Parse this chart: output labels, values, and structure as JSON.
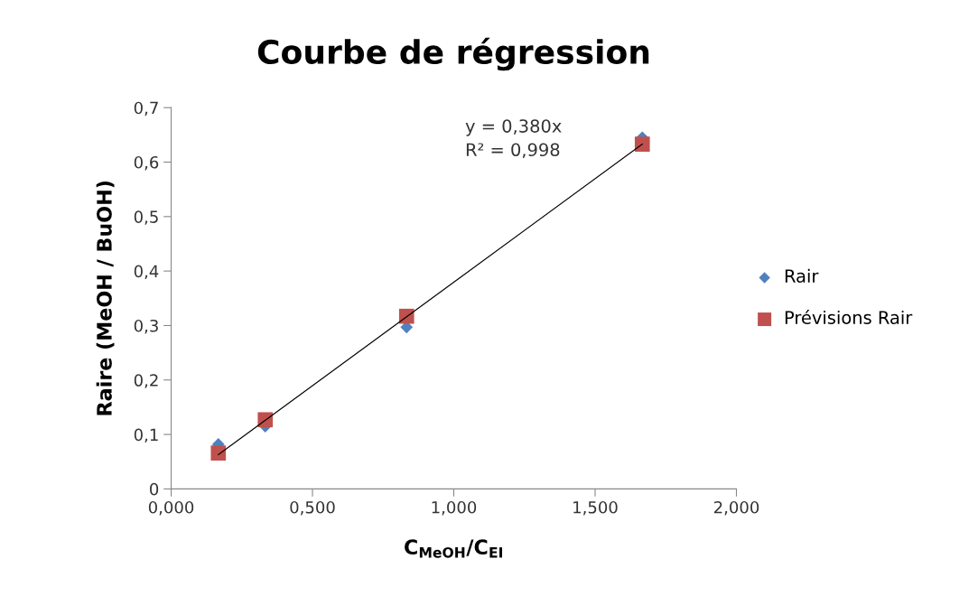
{
  "chart_data": {
    "type": "scatter",
    "title": "Courbe de régression",
    "xlabel": "C$_{MeOH}$/C$_{EI}$",
    "ylabel": "Raire (MeOH / BuOH)",
    "series": [
      {
        "name": "Rair",
        "marker": "diamond",
        "color": "#4f81bd",
        "x": [
          0.167,
          0.333,
          0.833,
          1.667
        ],
        "values": [
          0.082,
          0.115,
          0.297,
          0.645
        ]
      },
      {
        "name": "Prévisions Rair",
        "marker": "square",
        "color": "#c0504d",
        "x": [
          0.167,
          0.333,
          0.833,
          1.667
        ],
        "values": [
          0.066,
          0.127,
          0.317,
          0.633
        ]
      },
      {
        "type": "line",
        "marker": "none",
        "color": "#000000",
        "x": [
          0.167,
          1.667
        ],
        "values": [
          0.063,
          0.633
        ]
      }
    ],
    "annotations": [
      "y = 0,380x",
      "R² = 0,998"
    ],
    "xlim": [
      0,
      2
    ],
    "xticks": [
      {
        "value": 0,
        "label": "0,000"
      },
      {
        "value": 0.5,
        "label": "0,500"
      },
      {
        "value": 1,
        "label": "1,000"
      },
      {
        "value": 1.5,
        "label": "1,500"
      },
      {
        "value": 2,
        "label": "2,000"
      }
    ],
    "ylim": [
      0,
      0.7
    ],
    "yticks": [
      0,
      {
        "value": 0.1,
        "label": "0,1"
      },
      {
        "value": 0.2,
        "label": "0,2"
      },
      {
        "value": 0.3,
        "label": "0,3"
      },
      {
        "value": 0.4,
        "label": "0,4"
      },
      {
        "value": 0.5,
        "label": "0,5"
      },
      {
        "value": 0.6,
        "label": "0,6"
      },
      {
        "value": 0.7,
        "label": "0,7"
      }
    ],
    "grid": false,
    "legend": "right"
  }
}
